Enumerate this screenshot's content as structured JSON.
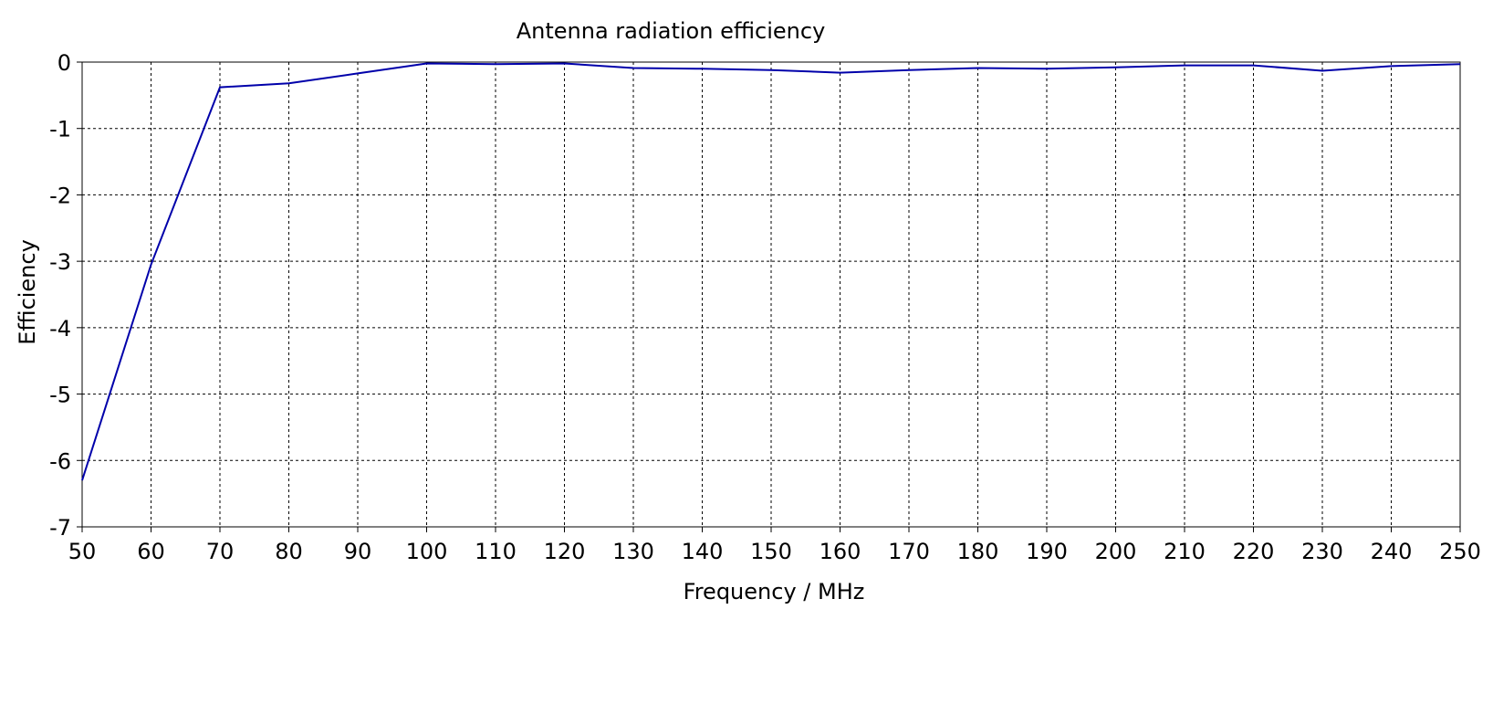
{
  "chart_data": {
    "type": "line",
    "title": "Antenna radiation efficiency",
    "xlabel": "Frequency / MHz",
    "ylabel": "Efficiency",
    "xlim": [
      50,
      250
    ],
    "ylim": [
      -7,
      0
    ],
    "x_ticks": [
      50,
      60,
      70,
      80,
      90,
      100,
      110,
      120,
      130,
      140,
      150,
      160,
      170,
      180,
      190,
      200,
      210,
      220,
      230,
      240,
      250
    ],
    "y_ticks": [
      0,
      -1,
      -2,
      -3,
      -4,
      -5,
      -6,
      -7
    ],
    "grid": true,
    "series": [
      {
        "color": "#0000aa",
        "x": [
          50,
          60,
          70,
          80,
          90,
          100,
          110,
          120,
          130,
          140,
          150,
          160,
          170,
          180,
          190,
          200,
          210,
          220,
          230,
          240,
          250
        ],
        "y": [
          -6.3,
          -3.05,
          -0.38,
          -0.32,
          -0.17,
          -0.02,
          -0.03,
          -0.02,
          -0.09,
          -0.1,
          -0.12,
          -0.16,
          -0.12,
          -0.09,
          -0.1,
          -0.08,
          -0.05,
          -0.05,
          -0.13,
          -0.06,
          -0.03
        ]
      }
    ]
  }
}
